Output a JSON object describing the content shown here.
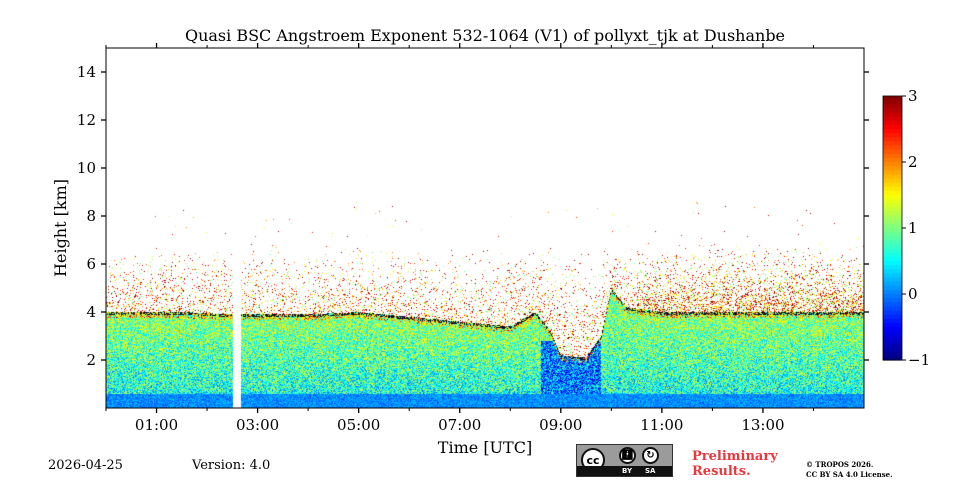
{
  "chart_data": {
    "type": "heatmap",
    "title": "Quasi BSC Angstroem Exponent 532-1064 (V1) of pollyxt_tjk at Dushanbe",
    "xlabel": "Time [UTC]",
    "ylabel": "Height [km]",
    "xlim_hours": [
      0.0,
      15.0
    ],
    "ylim_km": [
      0.0,
      15.0
    ],
    "x_ticks": [
      {
        "hour": 1,
        "label": "01:00"
      },
      {
        "hour": 3,
        "label": "03:00"
      },
      {
        "hour": 5,
        "label": "05:00"
      },
      {
        "hour": 7,
        "label": "07:00"
      },
      {
        "hour": 9,
        "label": "09:00"
      },
      {
        "hour": 11,
        "label": "11:00"
      },
      {
        "hour": 13,
        "label": "13:00"
      }
    ],
    "x_minor_ticks_hours": [
      0,
      2,
      4,
      6,
      8,
      10,
      12,
      14
    ],
    "y_ticks": [
      {
        "km": 2,
        "label": "2"
      },
      {
        "km": 4,
        "label": "4"
      },
      {
        "km": 6,
        "label": "6"
      },
      {
        "km": 8,
        "label": "8"
      },
      {
        "km": 10,
        "label": "10"
      },
      {
        "km": 12,
        "label": "12"
      },
      {
        "km": 14,
        "label": "14"
      }
    ],
    "colorbar": {
      "vmin": -1,
      "vmax": 3,
      "colormap": "jet",
      "ticks": [
        {
          "value": 3,
          "label": "3"
        },
        {
          "value": 2,
          "label": "2"
        },
        {
          "value": 1,
          "label": "1"
        },
        {
          "value": 0,
          "label": "0"
        },
        {
          "value": -1,
          "label": "−1"
        }
      ]
    },
    "boundary_layer_top_km": [
      {
        "hour": 0.0,
        "km": 4.0
      },
      {
        "hour": 1.5,
        "km": 4.0
      },
      {
        "hour": 2.5,
        "km": 3.9
      },
      {
        "hour": 4.0,
        "km": 3.9
      },
      {
        "hour": 5.0,
        "km": 4.0
      },
      {
        "hour": 6.0,
        "km": 3.8
      },
      {
        "hour": 7.0,
        "km": 3.6
      },
      {
        "hour": 8.0,
        "km": 3.4
      },
      {
        "hour": 8.5,
        "km": 4.0
      },
      {
        "hour": 8.8,
        "km": 3.2
      },
      {
        "hour": 9.0,
        "km": 2.2
      },
      {
        "hour": 9.5,
        "km": 2.1
      },
      {
        "hour": 9.8,
        "km": 3.0
      },
      {
        "hour": 10.0,
        "km": 5.0
      },
      {
        "hour": 10.3,
        "km": 4.2
      },
      {
        "hour": 11.0,
        "km": 4.0
      },
      {
        "hour": 13.0,
        "km": 4.0
      },
      {
        "hour": 15.0,
        "km": 4.0
      }
    ],
    "sparse_signal_top_km": 7.0,
    "no_data_gaps_hours": [
      [
        2.52,
        2.68
      ]
    ],
    "regions": [
      {
        "name": "surface layer",
        "km_range": [
          0.0,
          0.6
        ],
        "approx_value": -0.1
      },
      {
        "name": "boundary layer",
        "km_range": [
          0.6,
          4.0
        ],
        "approx_value": 0.8
      },
      {
        "name": "upper noisy layer",
        "km_range": [
          4.0,
          7.0
        ],
        "approx_value": 1.5
      }
    ]
  },
  "footer": {
    "date": "2026-04-25",
    "version": "Version: 4.0",
    "license_badge": {
      "cc": "cc",
      "by": "BY",
      "sa": "SA"
    },
    "preliminary_line1": "Preliminary",
    "preliminary_line2": "Results.",
    "copyright_line1": "© TROPOS 2026.",
    "copyright_line2": "CC BY SA 4.0 License."
  },
  "colors": {
    "axis": "#000000",
    "preliminary_text": "#e8383d",
    "badge_background": "#9b9b9b"
  }
}
